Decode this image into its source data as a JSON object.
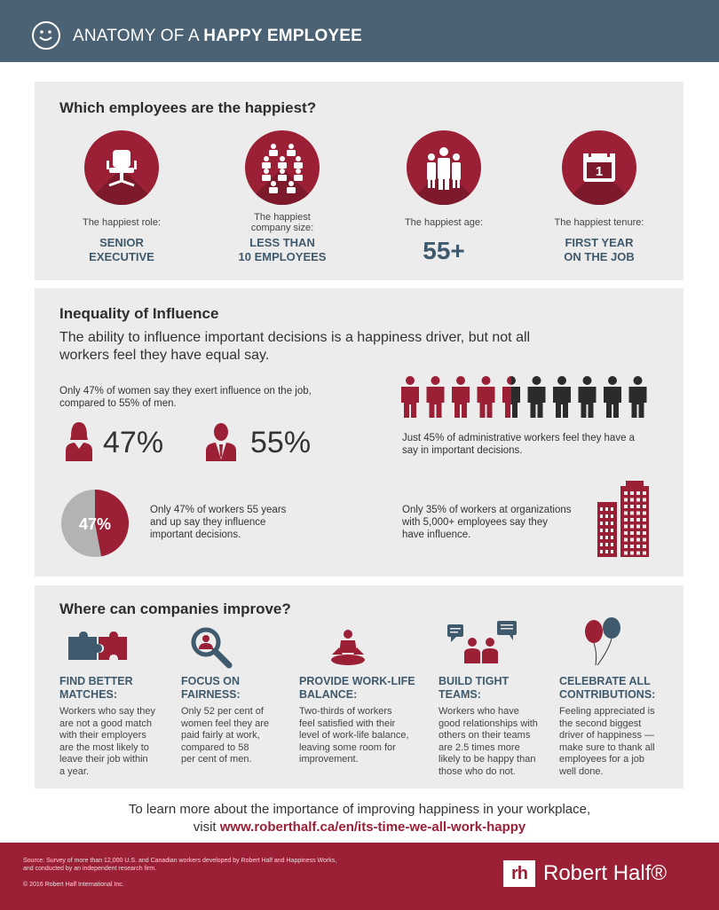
{
  "header": {
    "title_pre": "ANATOMY OF A ",
    "title_bold": "HAPPY EMPLOYEE"
  },
  "happiest": {
    "title": "Which employees are the happiest?",
    "items": [
      {
        "caption": "The happiest role:",
        "value_l1": "SENIOR",
        "value_l2": "EXECUTIVE",
        "icon": "office-chair-icon"
      },
      {
        "caption_l1": "The happiest",
        "caption_l2": "company size:",
        "value_l1": "LESS THAN",
        "value_l2": "10 EMPLOYEES",
        "icon": "small-team-icon"
      },
      {
        "caption": "The happiest age:",
        "value": "55+",
        "icon": "people-group-icon"
      },
      {
        "caption": "The happiest tenure:",
        "value_l1": "FIRST YEAR",
        "value_l2": "ON THE JOB",
        "icon": "calendar-icon",
        "icon_text": "1"
      }
    ]
  },
  "influence": {
    "title": "Inequality of Influence",
    "lead_l1": "The ability to influence important decisions is a happiness driver, but not all",
    "lead_l2": "workers feel they have equal say.",
    "gender_l1": "Only 47% of women say they exert influence on the job,",
    "gender_l2": "compared to 55% of men.",
    "women_pct": "47%",
    "men_pct": "55%",
    "women_value": 47,
    "men_value": 55,
    "admin_l1": "Just 45% of administrative workers feel they have a",
    "admin_l2": "say in important decisions.",
    "admin_value": 45,
    "age_pct": "47%",
    "age_value": 47,
    "age_l1": "Only 47% of workers 55 years",
    "age_l2": "and up say they influence",
    "age_l3": "important decisions.",
    "org_l1": "Only 35% of workers at organizations",
    "org_l2": "with 5,000+ employees say they",
    "org_l3": "have influence.",
    "colors": {
      "accent": "#9b2036",
      "dark": "#2b2b2b",
      "grey": "#b3b3b3"
    }
  },
  "improve": {
    "title": "Where can companies improve?",
    "items": [
      {
        "title_l1": "FIND BETTER",
        "title_l2": "MATCHES:",
        "lines": [
          "Workers who say they",
          "are not a good match",
          "with their employers",
          "are the most likely to",
          "leave their job within",
          "a year."
        ],
        "icon": "puzzle-icon"
      },
      {
        "title_l1": "FOCUS ON",
        "title_l2": "FAIRNESS:",
        "lines": [
          "Only 52 per cent of",
          "women feel they are",
          "paid fairly at work,",
          "compared to 58",
          "per cent of men."
        ],
        "icon": "magnifier-icon"
      },
      {
        "title_l1": "PROVIDE WORK-LIFE",
        "title_l2": "BALANCE:",
        "lines": [
          "Two-thirds of workers",
          "feel satisfied with their",
          "level of work-life balance,",
          "leaving some room for",
          "improvement."
        ],
        "icon": "meditation-icon"
      },
      {
        "title_l1": "BUILD TIGHT",
        "title_l2": "TEAMS:",
        "lines": [
          "Workers who have",
          "good relationships with",
          "others on their teams",
          "are 2.5 times more",
          "likely to be happy than",
          "those who do not."
        ],
        "icon": "conversation-icon"
      },
      {
        "title_l1": "CELEBRATE ALL",
        "title_l2": "CONTRIBUTIONS:",
        "lines": [
          "Feeling appreciated is",
          "the second biggest",
          "driver of happiness —",
          "make sure to thank all",
          "employees for a job",
          "well done."
        ],
        "icon": "balloons-icon"
      }
    ]
  },
  "cta": {
    "line1": "To learn more about the importance of improving happiness in your workplace,",
    "visit": "visit ",
    "link": "www.roberthalf.ca/en/its-time-we-all-work-happy"
  },
  "footer": {
    "source_l1": "Source: Survey of more than 12,000 U.S. and Canadian workers developed by Robert Half and Happiness Works,",
    "source_l2": "and conducted by an independent research firm.",
    "copyright": "© 2016 Robert Half International Inc.",
    "logo_mark": "rh",
    "logo_text": "Robert Half®"
  }
}
